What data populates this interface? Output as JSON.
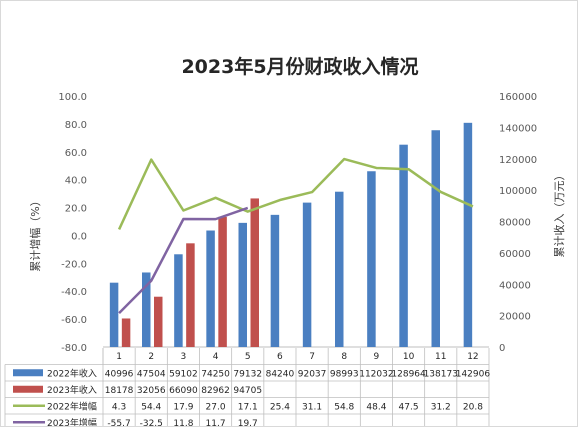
{
  "chart_data": {
    "type": "bar",
    "title": "2023年5月份财政收入情况",
    "categories": [
      "1",
      "2",
      "3",
      "4",
      "5",
      "6",
      "7",
      "8",
      "9",
      "10",
      "11",
      "12"
    ],
    "series": [
      {
        "name": "2022年收入",
        "kind": "bar",
        "axis": "right",
        "color": "#4a7fc1",
        "values": [
          40996,
          47504,
          59102,
          74250,
          79132,
          84240,
          92037,
          98993,
          112032,
          128964,
          138173,
          142906
        ],
        "labels": [
          "40996",
          "47504",
          "59102",
          "74250",
          "79132",
          "84240",
          "92037",
          "98993",
          "112032",
          "128964",
          "138173",
          "142906"
        ]
      },
      {
        "name": "2023年收入",
        "kind": "bar",
        "axis": "right",
        "color": "#c0504d",
        "values": [
          18178,
          32056,
          66090,
          82962,
          94705,
          null,
          null,
          null,
          null,
          null,
          null,
          null
        ],
        "labels": [
          "18178",
          "32056",
          "66090",
          "82962",
          "94705",
          "",
          "",
          "",
          "",
          "",
          "",
          ""
        ]
      },
      {
        "name": "2022年增幅",
        "kind": "line",
        "axis": "left",
        "color": "#9bbb59",
        "values": [
          4.3,
          54.4,
          17.9,
          27.0,
          17.1,
          25.4,
          31.1,
          54.8,
          48.4,
          47.5,
          31.2,
          20.8
        ],
        "labels": [
          "4.3",
          "54.4",
          "17.9",
          "27.0",
          "17.1",
          "25.4",
          "31.1",
          "54.8",
          "48.4",
          "47.5",
          "31.2",
          "20.8"
        ]
      },
      {
        "name": "2023年增幅",
        "kind": "line",
        "axis": "left",
        "color": "#8064a2",
        "values": [
          -55.7,
          -32.5,
          11.8,
          11.7,
          19.7,
          null,
          null,
          null,
          null,
          null,
          null,
          null
        ],
        "labels": [
          "-55.7",
          "-32.5",
          "11.8",
          "11.7",
          "19.7",
          "",
          "",
          "",
          "",
          "",
          "",
          ""
        ]
      }
    ],
    "y_left": {
      "label": "累计增幅（%）",
      "min": -80,
      "max": 100,
      "step": 20,
      "ticks": [
        "-80.0",
        "-60.0",
        "-40.0",
        "-20.0",
        "0.0",
        "20.0",
        "40.0",
        "60.0",
        "80.0",
        "100.0"
      ]
    },
    "y_right": {
      "label": "累计收入（万元）",
      "min": 0,
      "max": 160000,
      "step": 20000,
      "ticks": [
        "0",
        "20000",
        "40000",
        "60000",
        "80000",
        "100000",
        "120000",
        "140000",
        "160000"
      ]
    },
    "grid": false,
    "legend": "data-table"
  }
}
